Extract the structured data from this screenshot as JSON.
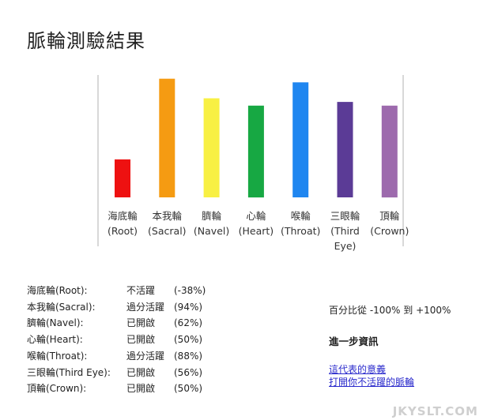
{
  "page": {
    "title": "脈輪測驗結果"
  },
  "chart_data": {
    "type": "bar",
    "categories": [
      [
        "海底輪",
        "(Root)"
      ],
      [
        "本我輪",
        "(Sacral)"
      ],
      [
        "臍輪",
        "(Navel)"
      ],
      [
        "心輪",
        "(Heart)"
      ],
      [
        "喉輪",
        "(Throat)"
      ],
      [
        "三眼輪",
        "(Third",
        "Eye)"
      ],
      [
        "頂輪",
        "(Crown)"
      ]
    ],
    "values": [
      -38,
      94,
      62,
      50,
      88,
      56,
      50
    ],
    "colors": [
      "#ee1111",
      "#f59b12",
      "#f8f043",
      "#17a843",
      "#1f86f0",
      "#5b3b96",
      "#9d6aad"
    ],
    "ylim": [
      -100,
      100
    ],
    "grid": false
  },
  "results": [
    {
      "name": "海底輪(Root):",
      "status": "不活躍",
      "percent": "(-38%)"
    },
    {
      "name": "本我輪(Sacral):",
      "status": "過分活躍",
      "percent": "(94%)"
    },
    {
      "name": "臍輪(Navel):",
      "status": "已開啟",
      "percent": "(62%)"
    },
    {
      "name": "心輪(Heart):",
      "status": "已開啟",
      "percent": "(50%)"
    },
    {
      "name": "喉輪(Throat):",
      "status": "過分活躍",
      "percent": "(88%)"
    },
    {
      "name": "三眼輪(Third Eye):",
      "status": "已開啟",
      "percent": "(56%)"
    },
    {
      "name": "頂輪(Crown):",
      "status": "已開啟",
      "percent": "(50%)"
    }
  ],
  "info": {
    "range": "百分比從 -100% 到 +100%",
    "heading": "進一步資訊",
    "links": [
      "這代表的意義",
      "打開你不活躍的脈輪"
    ]
  },
  "watermark": "JKYSLT.COM"
}
